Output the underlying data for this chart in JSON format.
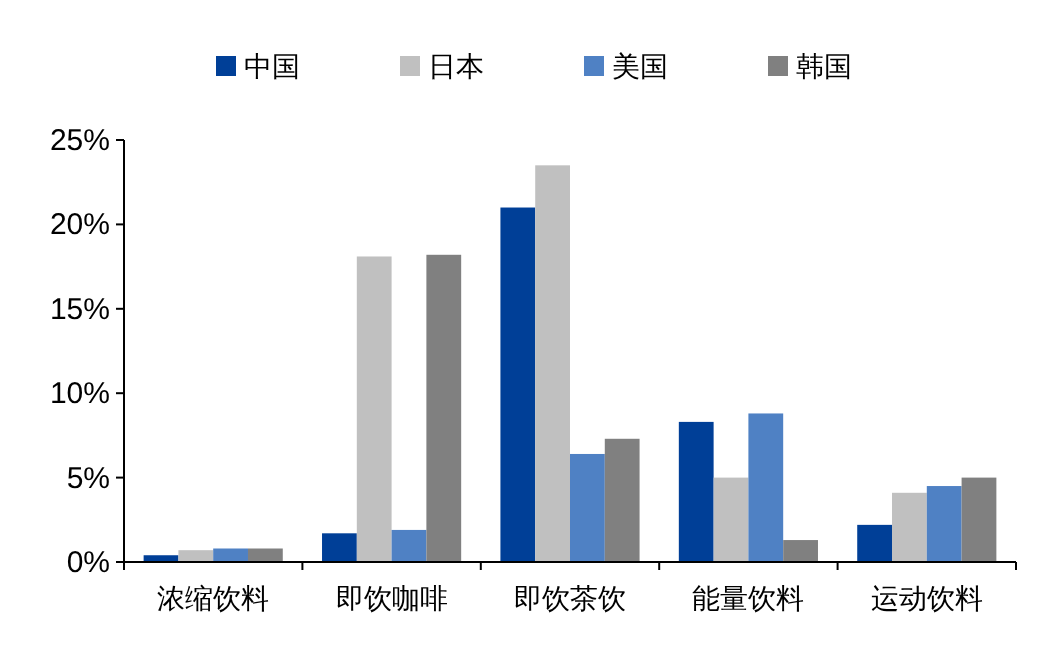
{
  "chart_data": {
    "type": "bar",
    "categories": [
      "浓缩饮料",
      "即饮咖啡",
      "即饮茶饮",
      "能量饮料",
      "运动饮料"
    ],
    "series": [
      {
        "name": "中国",
        "color": "#003f97",
        "values": [
          0.4,
          1.7,
          21.0,
          8.3,
          2.2
        ]
      },
      {
        "name": "日本",
        "color": "#c0c0c0",
        "values": [
          0.7,
          18.1,
          23.5,
          5.0,
          4.1
        ]
      },
      {
        "name": "美国",
        "color": "#4f81c4",
        "values": [
          0.8,
          1.9,
          6.4,
          8.8,
          4.5
        ]
      },
      {
        "name": "韩国",
        "color": "#808080",
        "values": [
          0.8,
          18.2,
          7.3,
          1.3,
          5.0
        ]
      }
    ],
    "ylim": [
      0,
      25
    ],
    "yticks": [
      {
        "value": 0,
        "label": "0%"
      },
      {
        "value": 5,
        "label": "5%"
      },
      {
        "value": 10,
        "label": "10%"
      },
      {
        "value": 15,
        "label": "15%"
      },
      {
        "value": 20,
        "label": "20%"
      },
      {
        "value": 25,
        "label": "25%"
      }
    ],
    "legend": "top",
    "grid": false
  }
}
